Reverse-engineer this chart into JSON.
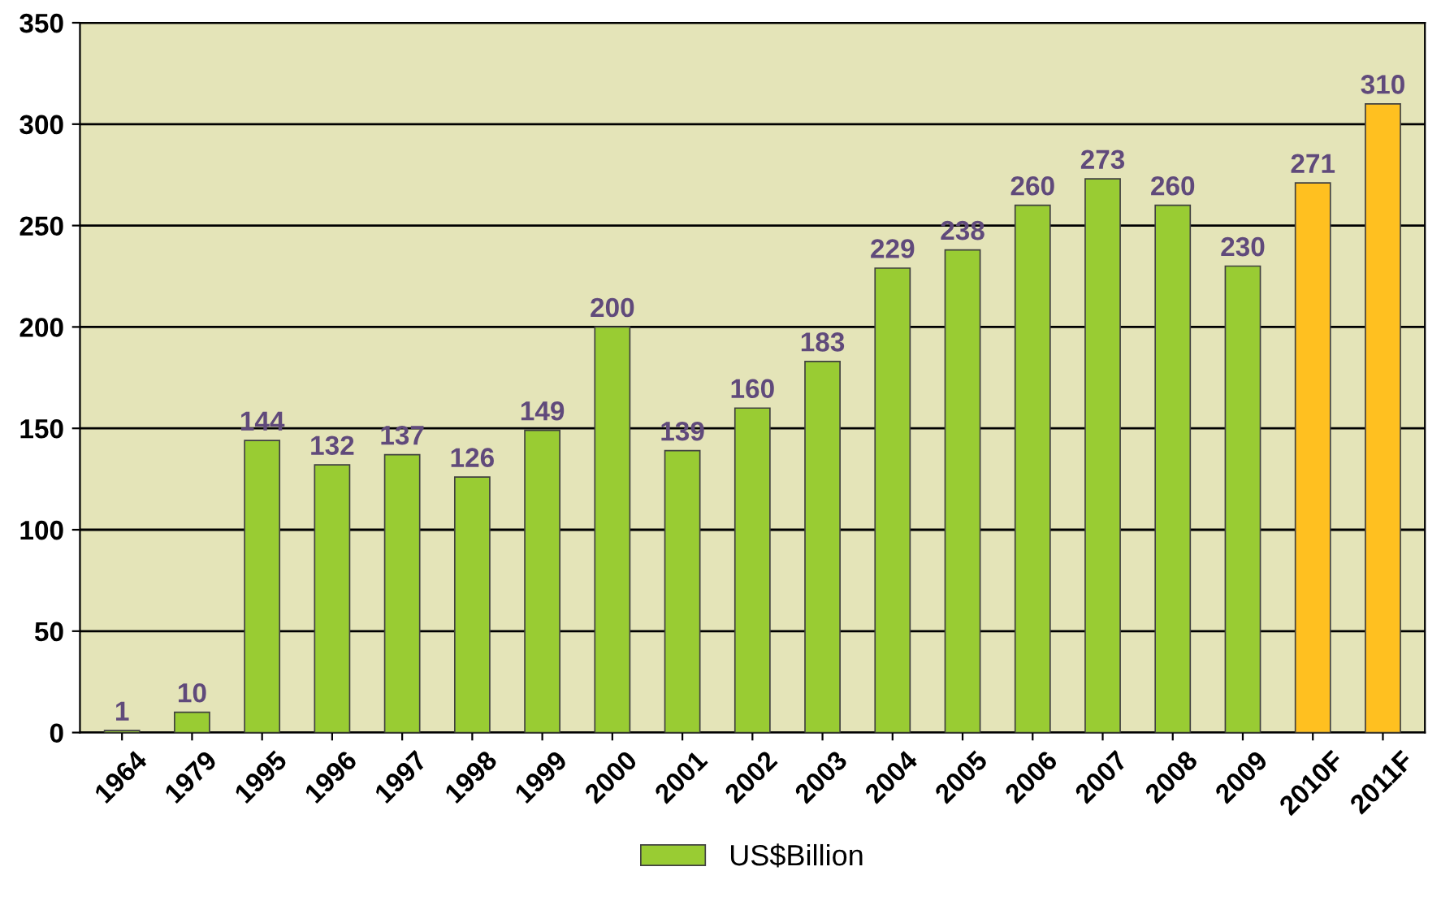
{
  "chart_data": {
    "type": "bar",
    "categories": [
      "1964",
      "1979",
      "1995",
      "1996",
      "1997",
      "1998",
      "1999",
      "2000",
      "2001",
      "2002",
      "2003",
      "2004",
      "2005",
      "2006",
      "2007",
      "2008",
      "2009",
      "2010F",
      "2011F"
    ],
    "series": [
      {
        "name": "US$Billion",
        "color": "#99cc33",
        "colors": [
          "#99cc33",
          "#99cc33",
          "#99cc33",
          "#99cc33",
          "#99cc33",
          "#99cc33",
          "#99cc33",
          "#99cc33",
          "#99cc33",
          "#99cc33",
          "#99cc33",
          "#99cc33",
          "#99cc33",
          "#99cc33",
          "#99cc33",
          "#99cc33",
          "#99cc33",
          "#ffc020",
          "#ffc020"
        ],
        "values": [
          1,
          10,
          144,
          132,
          137,
          126,
          149,
          200,
          139,
          160,
          183,
          229,
          238,
          260,
          273,
          260,
          230,
          271,
          310
        ]
      }
    ],
    "ylim": [
      0,
      350
    ],
    "yticks": [
      0,
      50,
      100,
      150,
      200,
      250,
      300,
      350
    ],
    "grid": "y",
    "legend": "bottom",
    "data_labels": true
  }
}
